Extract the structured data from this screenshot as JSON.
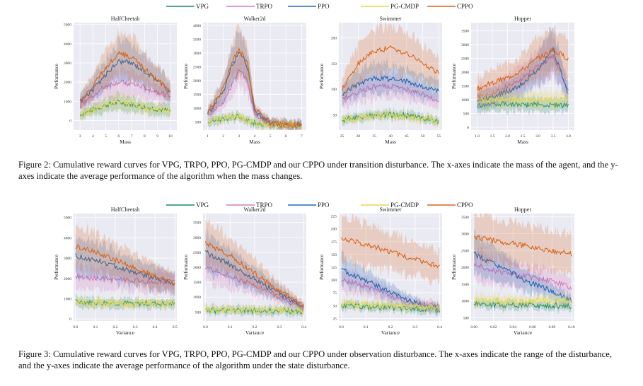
{
  "legend": [
    {
      "name": "VPG",
      "color": "#1b8a6b"
    },
    {
      "name": "TRPO",
      "color": "#d978b8"
    },
    {
      "name": "PPO",
      "color": "#2468b0"
    },
    {
      "name": "PG-CMDP",
      "color": "#e6d84a"
    },
    {
      "name": "CPPO",
      "color": "#d9641b"
    }
  ],
  "captions": {
    "fig2": "Figure 2: Cumulative reward curves for VPG, TRPO, PPO, PG-CMDP and our CPPO under transition disturbance. The x-axes indicate the mass of the agent, and the y-axes indicate the average performance of the algorithm when the mass changes.",
    "fig3": "Figure 3: Cumulative reward curves for VPG, TRPO, PPO, PG-CMDP and our CPPO under observation disturbance. The x-axes indicate the range of the disturbance, and the y-axes indicate the average performance of the algorithm under the state disturbance."
  },
  "chart_data": [
    {
      "id": "f2-halfcheetah",
      "figure": "fig2",
      "type": "line",
      "title": "HalfCheetah",
      "xlabel": "Mass",
      "ylabel": "Performance",
      "xlim": [
        2.5,
        10.5
      ],
      "ylim": [
        -500,
        5100
      ],
      "xticks": [
        3,
        4,
        5,
        6,
        7,
        8,
        9,
        10
      ],
      "yticks": [
        0,
        1000,
        2000,
        3000,
        4000,
        5000
      ],
      "grid": true,
      "series": [
        {
          "name": "VPG",
          "x": [
            3,
            4,
            5,
            6,
            7,
            8,
            9,
            10
          ],
          "values": [
            300,
            560,
            810,
            950,
            850,
            700,
            600,
            500
          ]
        },
        {
          "name": "TRPO",
          "x": [
            3,
            4,
            5,
            6,
            7,
            8,
            9,
            10
          ],
          "values": [
            800,
            1300,
            1800,
            2000,
            1900,
            1700,
            1500,
            1300
          ]
        },
        {
          "name": "PPO",
          "x": [
            3,
            4,
            5,
            6,
            7,
            8,
            9,
            10
          ],
          "values": [
            1000,
            1600,
            2400,
            3100,
            3000,
            2600,
            2100,
            1500
          ]
        },
        {
          "name": "PG-CMDP",
          "x": [
            3,
            4,
            5,
            6,
            7,
            8,
            9,
            10
          ],
          "values": [
            280,
            560,
            800,
            1000,
            850,
            700,
            600,
            500
          ]
        },
        {
          "name": "CPPO",
          "x": [
            3,
            4,
            5,
            6,
            7,
            8,
            9,
            10
          ],
          "values": [
            900,
            1800,
            2800,
            3500,
            3300,
            2700,
            2100,
            1500
          ]
        }
      ]
    },
    {
      "id": "f2-walker",
      "figure": "fig2",
      "type": "line",
      "title": "Walker2d",
      "xlabel": "Mass",
      "ylabel": "Performance",
      "xlim": [
        0.7,
        7.3
      ],
      "ylim": [
        200,
        4100
      ],
      "xticks": [
        1,
        2,
        3,
        4,
        5,
        6,
        7
      ],
      "yticks": [
        500,
        1000,
        1500,
        2000,
        2500,
        3000,
        3500,
        4000
      ],
      "grid": true,
      "series": [
        {
          "name": "VPG",
          "x": [
            1,
            2,
            2.5,
            3,
            3.5,
            4,
            5,
            6,
            7
          ],
          "values": [
            500,
            600,
            650,
            700,
            550,
            450,
            400,
            380,
            370
          ]
        },
        {
          "name": "TRPO",
          "x": [
            1,
            2,
            2.5,
            3,
            3.5,
            4,
            5,
            6,
            7
          ],
          "values": [
            700,
            1200,
            1800,
            2400,
            2000,
            800,
            450,
            390,
            370
          ]
        },
        {
          "name": "PPO",
          "x": [
            1,
            2,
            2.5,
            3,
            3.5,
            4,
            5,
            6,
            7
          ],
          "values": [
            800,
            1600,
            2500,
            3000,
            2600,
            900,
            460,
            390,
            370
          ]
        },
        {
          "name": "PG-CMDP",
          "x": [
            1,
            2,
            2.5,
            3,
            3.5,
            4,
            5,
            6,
            7
          ],
          "values": [
            520,
            600,
            650,
            700,
            550,
            450,
            400,
            380,
            370
          ]
        },
        {
          "name": "CPPO",
          "x": [
            1,
            2,
            2.5,
            3,
            3.5,
            4,
            5,
            6,
            7
          ],
          "values": [
            850,
            1700,
            2600,
            3100,
            2700,
            950,
            470,
            390,
            370
          ]
        }
      ]
    },
    {
      "id": "f2-swimmer",
      "figure": "fig2",
      "type": "line",
      "title": "Swimmer",
      "xlabel": "Mass",
      "ylabel": "Performance",
      "xlim": [
        24,
        56
      ],
      "ylim": [
        20,
        230
      ],
      "xticks": [
        25,
        30,
        35,
        40,
        45,
        50,
        55
      ],
      "yticks": [
        50,
        100,
        150,
        200
      ],
      "grid": true,
      "series": [
        {
          "name": "VPG",
          "x": [
            25,
            30,
            35,
            40,
            45,
            50,
            55
          ],
          "values": [
            40,
            45,
            48,
            50,
            48,
            43,
            38
          ]
        },
        {
          "name": "TRPO",
          "x": [
            25,
            30,
            35,
            40,
            45,
            50,
            55
          ],
          "values": [
            80,
            95,
            105,
            105,
            100,
            90,
            75
          ]
        },
        {
          "name": "PPO",
          "x": [
            25,
            30,
            35,
            40,
            45,
            50,
            55
          ],
          "values": [
            90,
            110,
            120,
            120,
            115,
            105,
            95
          ]
        },
        {
          "name": "PG-CMDP",
          "x": [
            25,
            30,
            35,
            40,
            45,
            50,
            55
          ],
          "values": [
            40,
            44,
            47,
            48,
            46,
            42,
            38
          ]
        },
        {
          "name": "CPPO",
          "x": [
            25,
            30,
            35,
            40,
            45,
            50,
            55
          ],
          "values": [
            100,
            150,
            175,
            180,
            170,
            150,
            130
          ]
        }
      ]
    },
    {
      "id": "f2-hopper",
      "figure": "fig2",
      "type": "line",
      "title": "Hopper",
      "xlabel": "Mass",
      "ylabel": "Performance",
      "xlim": [
        0.8,
        4.2
      ],
      "ylim": [
        -100,
        3800
      ],
      "xticks": [
        "1.0",
        "1.5",
        "2.0",
        "2.5",
        "3.0",
        "3.5",
        "4.0"
      ],
      "yticks": [
        0,
        500,
        1000,
        1500,
        2000,
        2500,
        3000,
        3500
      ],
      "grid": true,
      "series": [
        {
          "name": "VPG",
          "x": [
            1,
            1.5,
            2,
            2.5,
            3,
            3.5,
            4
          ],
          "values": [
            800,
            850,
            850,
            800,
            850,
            800,
            800
          ]
        },
        {
          "name": "TRPO",
          "x": [
            1,
            1.5,
            2,
            2.5,
            3,
            3.5,
            4
          ],
          "values": [
            1100,
            1200,
            1500,
            1800,
            2200,
            2600,
            1300
          ]
        },
        {
          "name": "PPO",
          "x": [
            1,
            1.5,
            2,
            2.5,
            3,
            3.5,
            4
          ],
          "values": [
            1000,
            1100,
            1300,
            1600,
            2100,
            2800,
            1200
          ]
        },
        {
          "name": "PG-CMDP",
          "x": [
            1,
            1.5,
            2,
            2.5,
            3,
            3.5,
            4
          ],
          "values": [
            1000,
            1000,
            1000,
            1000,
            1000,
            1000,
            1000
          ]
        },
        {
          "name": "CPPO",
          "x": [
            1,
            1.5,
            2,
            2.5,
            3,
            3.5,
            4
          ],
          "values": [
            1400,
            1600,
            1800,
            2100,
            2500,
            2800,
            2500
          ]
        }
      ]
    },
    {
      "id": "f3-halfcheetah",
      "figure": "fig3",
      "type": "line",
      "title": "HalfCheetah",
      "xlabel": "Variance",
      "ylabel": "Performance",
      "xlim": [
        -0.01,
        0.51
      ],
      "ylim": [
        -100,
        5200
      ],
      "xticks": [
        "0.0",
        "0.1",
        "0.2",
        "0.3",
        "0.4",
        "0.5"
      ],
      "yticks": [
        0,
        1000,
        2000,
        3000,
        4000,
        5000
      ],
      "grid": true,
      "series": [
        {
          "name": "VPG",
          "x": [
            0,
            0.1,
            0.2,
            0.3,
            0.4,
            0.5
          ],
          "values": [
            850,
            800,
            780,
            760,
            750,
            740
          ]
        },
        {
          "name": "TRPO",
          "x": [
            0,
            0.1,
            0.2,
            0.3,
            0.4,
            0.5
          ],
          "values": [
            2100,
            2000,
            1950,
            1900,
            1850,
            1800
          ]
        },
        {
          "name": "PPO",
          "x": [
            0,
            0.1,
            0.2,
            0.3,
            0.4,
            0.5
          ],
          "values": [
            3100,
            2900,
            2600,
            2300,
            2000,
            1700
          ]
        },
        {
          "name": "PG-CMDP",
          "x": [
            0,
            0.1,
            0.2,
            0.3,
            0.4,
            0.5
          ],
          "values": [
            800,
            780,
            760,
            750,
            740,
            730
          ]
        },
        {
          "name": "CPPO",
          "x": [
            0,
            0.1,
            0.2,
            0.3,
            0.4,
            0.5
          ],
          "values": [
            3600,
            3300,
            2900,
            2500,
            2100,
            1700
          ]
        }
      ]
    },
    {
      "id": "f3-walker",
      "figure": "fig3",
      "type": "line",
      "title": "Walker2d",
      "xlabel": "Variance",
      "ylabel": "Performance",
      "xlim": [
        -0.01,
        0.41
      ],
      "ylim": [
        200,
        3800
      ],
      "xticks": [
        "0.0",
        "0.1",
        "0.2",
        "0.3",
        "0.4"
      ],
      "yticks": [
        500,
        1000,
        1500,
        2000,
        2500,
        3000,
        3500
      ],
      "grid": true,
      "series": [
        {
          "name": "VPG",
          "x": [
            0,
            0.1,
            0.2,
            0.3,
            0.4
          ],
          "values": [
            550,
            560,
            550,
            540,
            530
          ]
        },
        {
          "name": "TRPO",
          "x": [
            0,
            0.1,
            0.2,
            0.3,
            0.4
          ],
          "values": [
            2000,
            1700,
            1400,
            1000,
            600
          ]
        },
        {
          "name": "PPO",
          "x": [
            0,
            0.1,
            0.2,
            0.3,
            0.4
          ],
          "values": [
            2500,
            2100,
            1600,
            1100,
            650
          ]
        },
        {
          "name": "PG-CMDP",
          "x": [
            0,
            0.1,
            0.2,
            0.3,
            0.4
          ],
          "values": [
            600,
            580,
            560,
            550,
            540
          ]
        },
        {
          "name": "CPPO",
          "x": [
            0,
            0.1,
            0.2,
            0.3,
            0.4
          ],
          "values": [
            2800,
            2400,
            1800,
            1200,
            700
          ]
        }
      ]
    },
    {
      "id": "f3-swimmer",
      "figure": "fig3",
      "type": "line",
      "title": "Swimmer",
      "xlabel": "Variance",
      "ylabel": "Performance",
      "xlim": [
        -0.01,
        0.41
      ],
      "ylim": [
        20,
        230
      ],
      "xticks": [
        "0.0",
        "0.1",
        "0.2",
        "0.3",
        "0.4"
      ],
      "yticks": [
        25,
        50,
        75,
        100,
        125,
        150,
        175,
        200,
        225
      ],
      "grid": true,
      "series": [
        {
          "name": "VPG",
          "x": [
            0,
            0.1,
            0.2,
            0.3,
            0.4
          ],
          "values": [
            50,
            48,
            46,
            44,
            42
          ]
        },
        {
          "name": "TRPO",
          "x": [
            0,
            0.1,
            0.2,
            0.3,
            0.4
          ],
          "values": [
            100,
            88,
            70,
            55,
            48
          ]
        },
        {
          "name": "PPO",
          "x": [
            0,
            0.1,
            0.2,
            0.3,
            0.4
          ],
          "values": [
            120,
            100,
            75,
            55,
            42
          ]
        },
        {
          "name": "PG-CMDP",
          "x": [
            0,
            0.1,
            0.2,
            0.3,
            0.4
          ],
          "values": [
            55,
            52,
            50,
            48,
            46
          ]
        },
        {
          "name": "CPPO",
          "x": [
            0,
            0.1,
            0.2,
            0.3,
            0.4
          ],
          "values": [
            180,
            170,
            155,
            140,
            125
          ]
        }
      ]
    },
    {
      "id": "f3-hopper",
      "figure": "fig3",
      "type": "line",
      "title": "Hopper",
      "xlabel": "Variance",
      "ylabel": "Performance",
      "xlim": [
        -0.003,
        0.103
      ],
      "ylim": [
        400,
        3600
      ],
      "xticks": [
        "0.00",
        "0.02",
        "0.04",
        "0.06",
        "0.08",
        "0.10"
      ],
      "yticks": [
        500,
        1000,
        1500,
        2000,
        2500,
        3000,
        3500
      ],
      "grid": true,
      "series": [
        {
          "name": "VPG",
          "x": [
            0,
            0.02,
            0.04,
            0.06,
            0.08,
            0.1
          ],
          "values": [
            900,
            880,
            870,
            860,
            850,
            850
          ]
        },
        {
          "name": "TRPO",
          "x": [
            0,
            0.02,
            0.04,
            0.06,
            0.08,
            0.1
          ],
          "values": [
            2100,
            1900,
            1800,
            1700,
            1600,
            1400
          ]
        },
        {
          "name": "PPO",
          "x": [
            0,
            0.02,
            0.04,
            0.06,
            0.08,
            0.1
          ],
          "values": [
            2400,
            2100,
            1800,
            1500,
            1300,
            1000
          ]
        },
        {
          "name": "PG-CMDP",
          "x": [
            0,
            0.02,
            0.04,
            0.06,
            0.08,
            0.1
          ],
          "values": [
            1000,
            1000,
            1000,
            1000,
            1000,
            1000
          ]
        },
        {
          "name": "CPPO",
          "x": [
            0,
            0.02,
            0.04,
            0.06,
            0.08,
            0.1
          ],
          "values": [
            2900,
            2800,
            2700,
            2600,
            2500,
            2400
          ]
        }
      ]
    }
  ]
}
